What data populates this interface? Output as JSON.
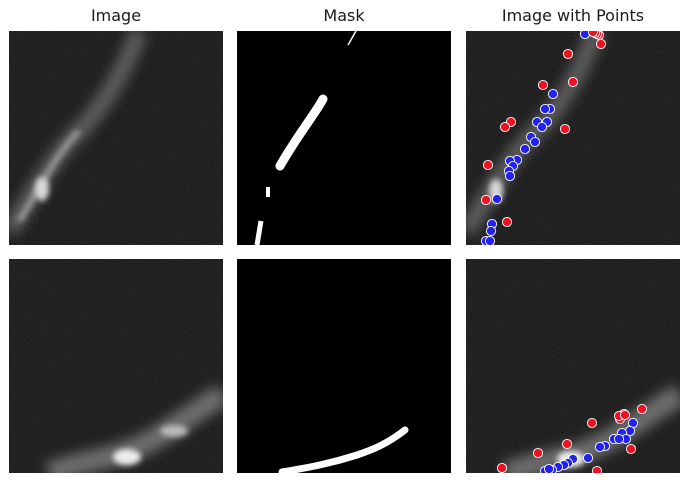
{
  "figure": {
    "columns": [
      {
        "title": "Image"
      },
      {
        "title": "Mask"
      },
      {
        "title": "Image with Points"
      }
    ],
    "rows": [
      {
        "positive_point_count": 20,
        "negative_point_count": 14,
        "colors": {
          "positive": "#2222ee",
          "negative": "#ee1122",
          "marker_edge": "#ffffff",
          "mask_fg": "#ffffff",
          "mask_bg": "#000000"
        }
      },
      {
        "positive_point_count": 16,
        "negative_point_count": 11,
        "colors": {
          "positive": "#2222ee",
          "negative": "#ee1122",
          "marker_edge": "#ffffff",
          "mask_fg": "#ffffff",
          "mask_bg": "#000000"
        }
      }
    ]
  }
}
